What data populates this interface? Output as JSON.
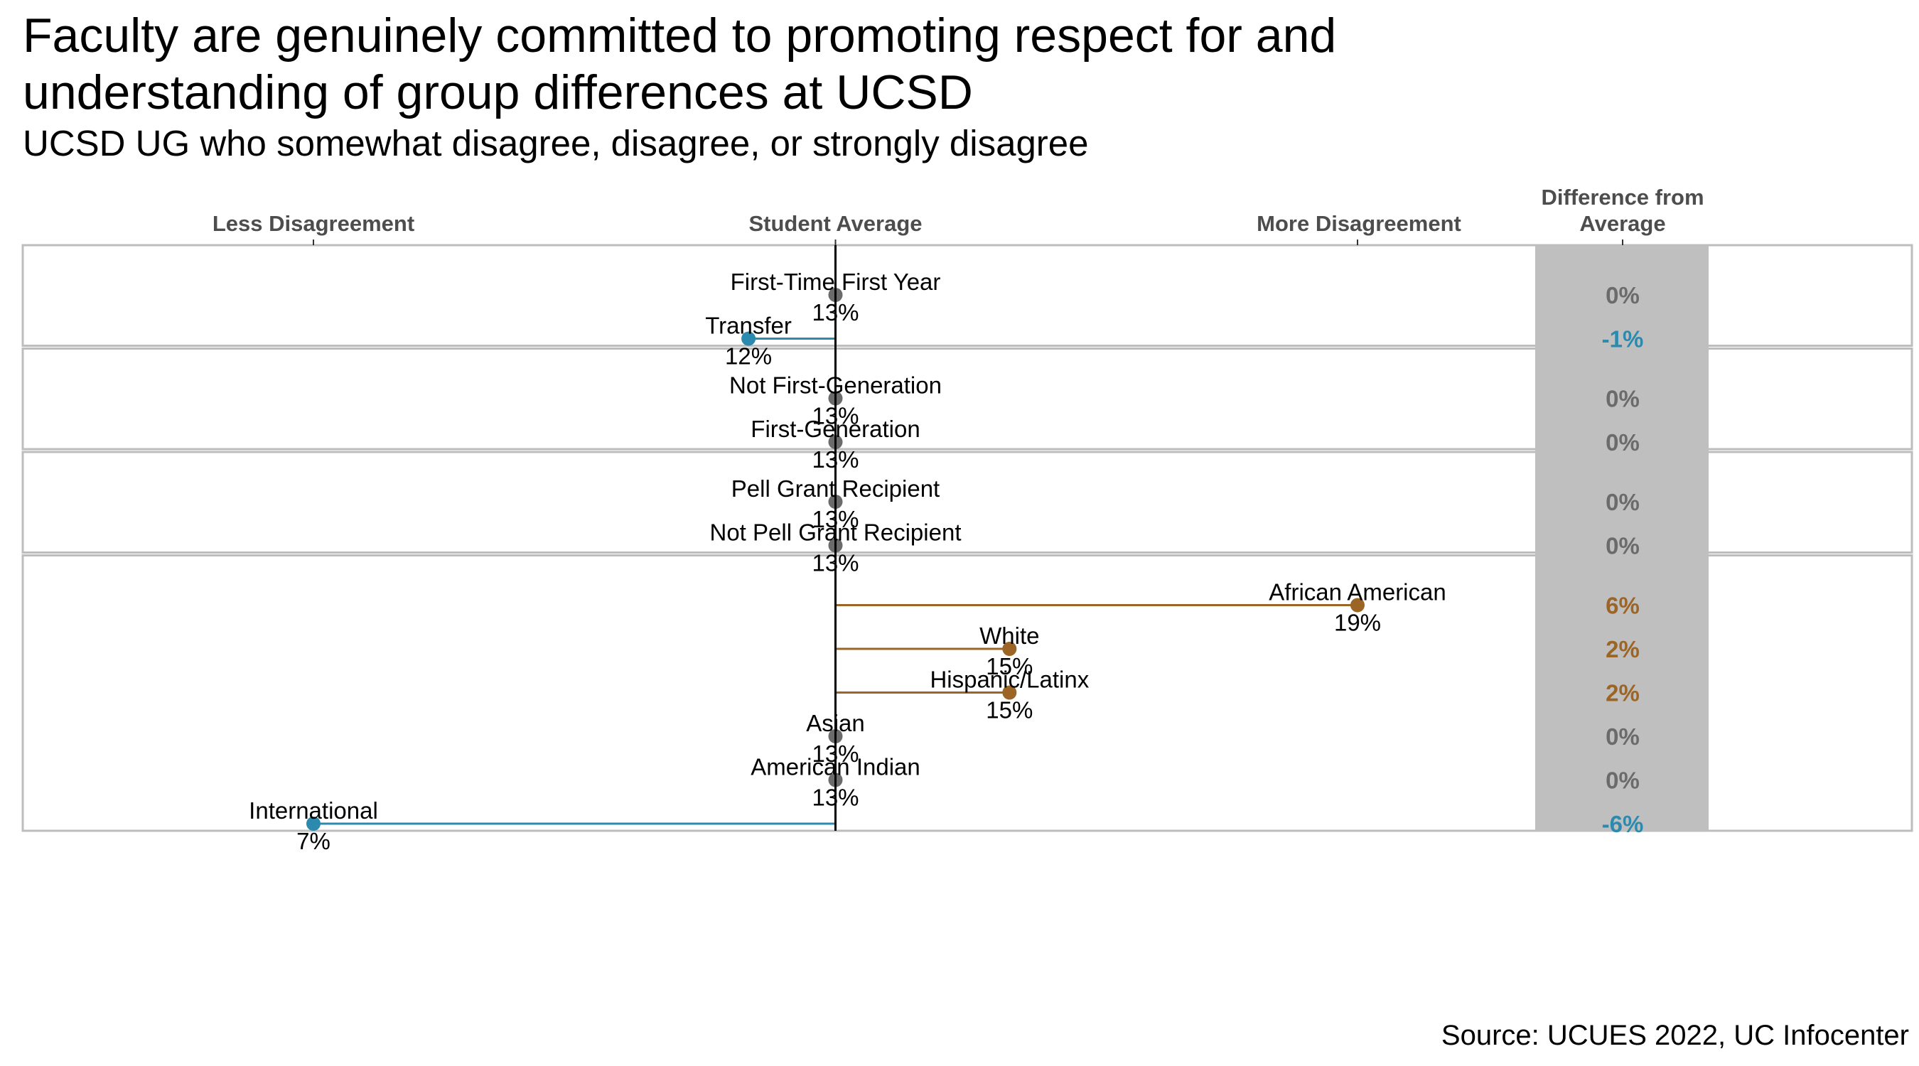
{
  "title_line1": "Faculty are genuinely committed to promoting respect for and",
  "title_line2": "understanding of group differences at UCSD",
  "subtitle": "UCSD UG who somewhat disagree, disagree, or strongly disagree",
  "source": "Source: UCUES 2022, UC Infocenter",
  "colors": {
    "above": "#9c6526",
    "below": "#2b8aad",
    "neutral": "#6b6b6b",
    "diff_panel": "#bfbfbf",
    "panel_border": "#bdbdbd"
  },
  "chart_data": {
    "type": "dot-lollipop",
    "headers": {
      "less": "Less Disagreement",
      "average": "Student Average",
      "more": "More Disagreement",
      "diff_line1": "Difference from",
      "diff_line2": "Average"
    },
    "average": 13,
    "xlim": [
      7,
      19
    ],
    "panels": [
      {
        "rows": [
          {
            "label": "First-Time First Year",
            "value": 13,
            "value_label": "13%",
            "diff": 0,
            "diff_label": "0%"
          },
          {
            "label": "Transfer",
            "value": 12,
            "value_label": "12%",
            "diff": -1,
            "diff_label": "-1%"
          }
        ]
      },
      {
        "rows": [
          {
            "label": "Not First-Generation",
            "value": 13,
            "value_label": "13%",
            "diff": 0,
            "diff_label": "0%"
          },
          {
            "label": "First-Generation",
            "value": 13,
            "value_label": "13%",
            "diff": 0,
            "diff_label": "0%"
          }
        ]
      },
      {
        "rows": [
          {
            "label": "Pell Grant Recipient",
            "value": 13,
            "value_label": "13%",
            "diff": 0,
            "diff_label": "0%"
          },
          {
            "label": "Not Pell Grant Recipient",
            "value": 13,
            "value_label": "13%",
            "diff": 0,
            "diff_label": "0%"
          }
        ]
      },
      {
        "rows": [
          {
            "label": "African American",
            "value": 19,
            "value_label": "19%",
            "diff": 6,
            "diff_label": "6%"
          },
          {
            "label": "White",
            "value": 15,
            "value_label": "15%",
            "diff": 2,
            "diff_label": "2%"
          },
          {
            "label": "Hispanic/Latinx",
            "value": 15,
            "value_label": "15%",
            "diff": 2,
            "diff_label": "2%"
          },
          {
            "label": "Asian",
            "value": 13,
            "value_label": "13%",
            "diff": 0,
            "diff_label": "0%"
          },
          {
            "label": "American Indian",
            "value": 13,
            "value_label": "13%",
            "diff": 0,
            "diff_label": "0%"
          },
          {
            "label": "International",
            "value": 7,
            "value_label": "7%",
            "diff": -6,
            "diff_label": "-6%"
          }
        ]
      }
    ]
  }
}
